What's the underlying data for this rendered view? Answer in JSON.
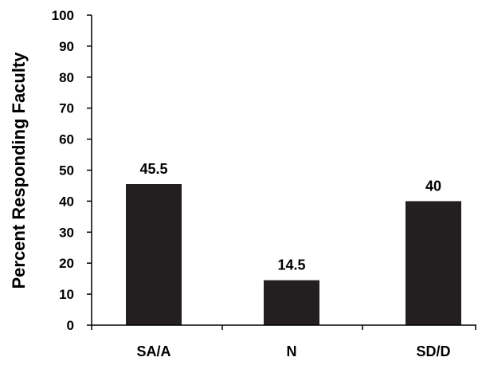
{
  "chart_data": {
    "type": "bar",
    "categories": [
      "SA/A",
      "N",
      "SD/D"
    ],
    "values": [
      45.5,
      14.5,
      40
    ],
    "data_labels": [
      "45.5",
      "14.5",
      "40"
    ],
    "title": "",
    "xlabel": "",
    "ylabel": "Percent Responding Faculty",
    "ylim": [
      0,
      100
    ],
    "yticks": [
      "0",
      "10",
      "20",
      "30",
      "40",
      "50",
      "60",
      "70",
      "80",
      "90",
      "100"
    ],
    "grid": false,
    "legend": "none",
    "bar_color": "#231f20",
    "axis_color": "#000000"
  }
}
